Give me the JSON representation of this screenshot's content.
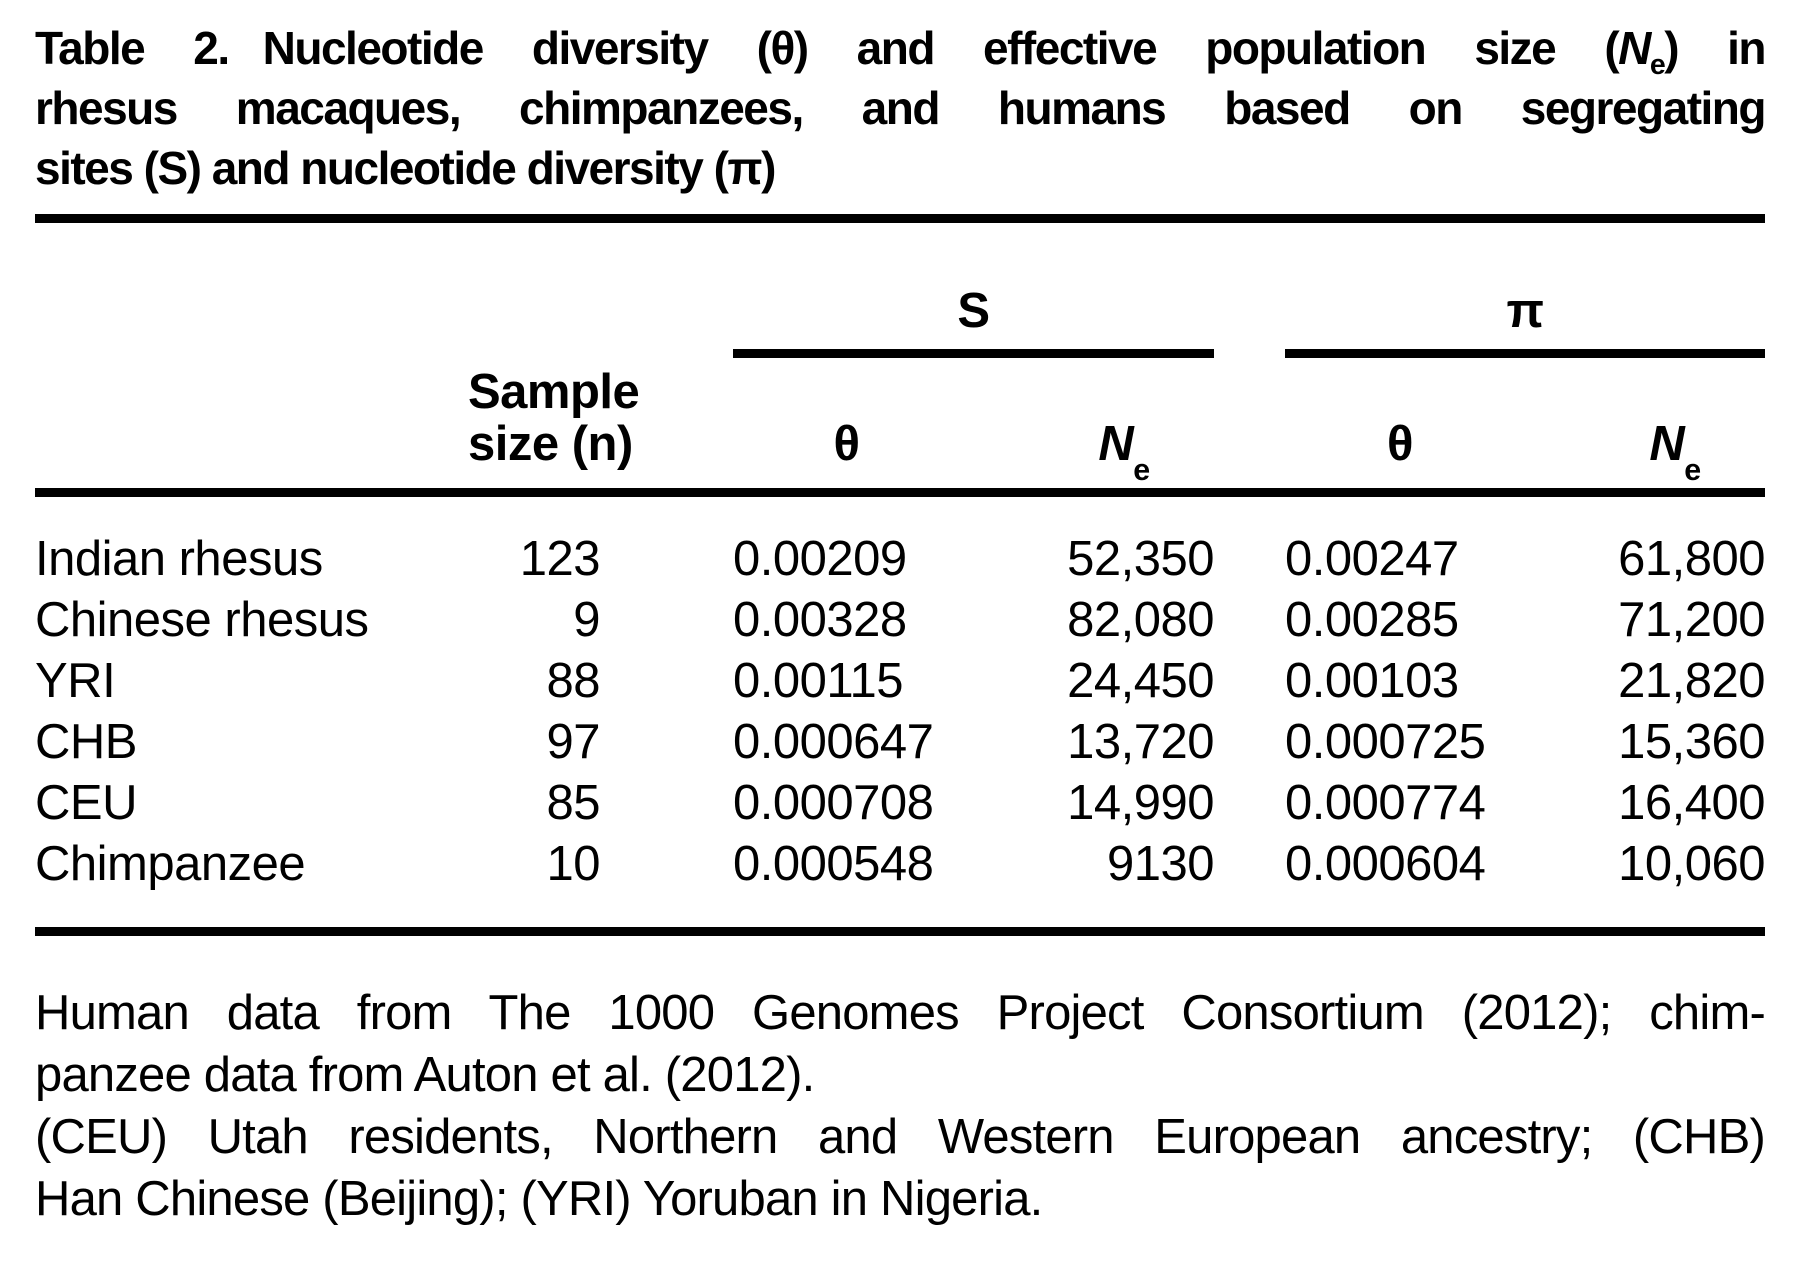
{
  "colors": {
    "background": "#ffffff",
    "text": "#000000"
  },
  "title": {
    "label": "Table 2.",
    "line1_pre": "Nucleotide diversity (θ) and effective population size (",
    "line1_N": "N",
    "line1_sub": "e",
    "line1_post": ") in",
    "line2": "rhesus macaques, chimpanzees, and humans based on segregating",
    "line3": "sites (S) and nucleotide diversity (π)"
  },
  "header": {
    "sample_line1": "Sample",
    "sample_line2": "size (n)",
    "spanner_s": "S",
    "spanner_pi": "π",
    "theta": "θ",
    "ne_main": "N",
    "ne_sub": "e"
  },
  "rows": [
    {
      "label": "Indian rhesus",
      "n": "123",
      "s_theta": "0.00209",
      "s_ne": "52,350",
      "pi_theta": "0.00247",
      "pi_ne": "61,800"
    },
    {
      "label": "Chinese rhesus",
      "n": "9",
      "s_theta": "0.00328",
      "s_ne": "82,080",
      "pi_theta": "0.00285",
      "pi_ne": "71,200"
    },
    {
      "label": "YRI",
      "n": "88",
      "s_theta": "0.00115",
      "s_ne": "24,450",
      "pi_theta": "0.00103",
      "pi_ne": "21,820"
    },
    {
      "label": "CHB",
      "n": "97",
      "s_theta": "0.000647",
      "s_ne": "13,720",
      "pi_theta": "0.000725",
      "pi_ne": "15,360"
    },
    {
      "label": "CEU",
      "n": "85",
      "s_theta": "0.000708",
      "s_ne": "14,990",
      "pi_theta": "0.000774",
      "pi_ne": "16,400"
    },
    {
      "label": "Chimpanzee",
      "n": "10",
      "s_theta": "0.000548",
      "s_ne": "9130",
      "pi_theta": "0.000604",
      "pi_ne": "10,060"
    }
  ],
  "footnotes": {
    "line1": "Human data from The 1000 Genomes Project Consortium (2012); chim-",
    "line2": "panzee data from Auton et al. (2012).",
    "line3": "(CEU) Utah residents, Northern and Western European ancestry; (CHB)",
    "line4": "Han Chinese (Beijing); (YRI) Yoruban in Nigeria."
  }
}
